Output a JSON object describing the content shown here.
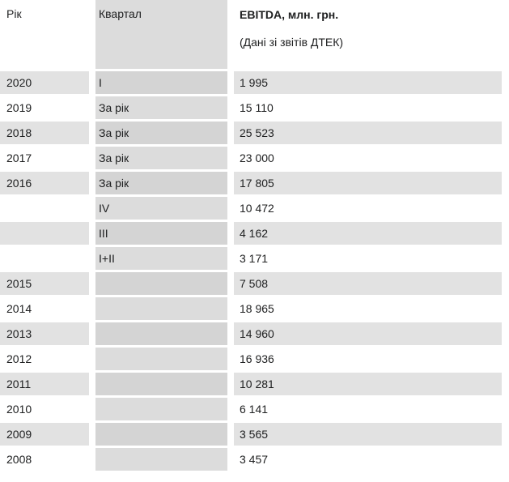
{
  "chart_data": {
    "type": "table",
    "header": {
      "year": "Рік",
      "quarter": "Квартал",
      "ebitda_title": "EBITDA, млн. грн.",
      "ebitda_subtitle": "(Дані зі звітів ДТЕК)"
    },
    "columns": [
      "Рік",
      "Квартал",
      "EBITDA, млн. грн."
    ],
    "rows": [
      {
        "year": "2020",
        "quarter": "I",
        "ebitda": "1 995"
      },
      {
        "year": "2019",
        "quarter": "За рік",
        "ebitda": "15 110"
      },
      {
        "year": "2018",
        "quarter": "За рік",
        "ebitda": "25 523"
      },
      {
        "year": "2017",
        "quarter": "За рік",
        "ebitda": "23 000"
      },
      {
        "year": "2016",
        "quarter": "За рік",
        "ebitda": "17 805"
      },
      {
        "year": "",
        "quarter": "IV",
        "ebitda": "10 472"
      },
      {
        "year": "",
        "quarter": "III",
        "ebitda": "4 162"
      },
      {
        "year": "",
        "quarter": "I+II",
        "ebitda": "3 171"
      },
      {
        "year": "2015",
        "quarter": "",
        "ebitda": "7 508"
      },
      {
        "year": "2014",
        "quarter": "",
        "ebitda": "18 965"
      },
      {
        "year": "2013",
        "quarter": "",
        "ebitda": "14 960"
      },
      {
        "year": "2012",
        "quarter": "",
        "ebitda": "16 936"
      },
      {
        "year": "2011",
        "quarter": "",
        "ebitda": "10 281"
      },
      {
        "year": "2010",
        "quarter": "",
        "ebitda": "6 141"
      },
      {
        "year": "2009",
        "quarter": "",
        "ebitda": "3 565"
      },
      {
        "year": "2008",
        "quarter": "",
        "ebitda": "3 457"
      }
    ],
    "colors": {
      "text": "#202122",
      "row_stripe": "#e2e2e2",
      "quarter_column": "#dcdcdc",
      "quarter_column_striped": "#d4d4d4",
      "background": "#ffffff"
    }
  }
}
